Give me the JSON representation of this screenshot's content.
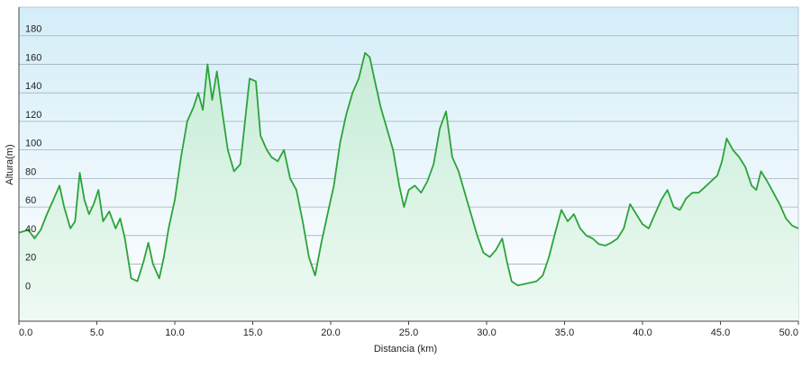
{
  "chart_data": {
    "type": "area",
    "xlabel": "Distancia  (km)",
    "ylabel": "Altura(m)",
    "xlim": [
      0,
      50
    ],
    "ylim": [
      -20,
      200
    ],
    "x_ticks": [
      "0.0",
      "5.0",
      "10.0",
      "15.0",
      "20.0",
      "25.0",
      "30.0",
      "35.0",
      "40.0",
      "45.0",
      "50.0"
    ],
    "y_ticks": [
      "0",
      "20",
      "40",
      "60",
      "80",
      "100",
      "120",
      "140",
      "160",
      "180"
    ],
    "grid": true,
    "colors": {
      "line": "#2ca33a",
      "fill_top": "#c6ecd7",
      "fill_bottom": "#eefaf2",
      "bg_top": "#d4edf8",
      "bg_bottom": "#ffffff",
      "grid": "#9fb1bd",
      "axis": "#444444"
    },
    "series": [
      {
        "x": [
          0.0,
          0.6,
          1.0,
          1.4,
          1.8,
          2.2,
          2.6,
          2.9,
          3.3,
          3.6,
          3.9,
          4.2,
          4.5,
          4.8,
          5.1,
          5.4,
          5.8,
          6.2,
          6.5,
          6.8,
          7.2,
          7.6,
          8.0,
          8.3,
          8.6,
          9.0,
          9.3,
          9.6,
          10.0,
          10.4,
          10.8,
          11.2,
          11.5,
          11.8,
          12.1,
          12.4,
          12.7,
          13.0,
          13.4,
          13.8,
          14.2,
          14.5,
          14.8,
          15.2,
          15.5,
          15.9,
          16.2,
          16.6,
          17.0,
          17.4,
          17.8,
          18.2,
          18.6,
          19.0,
          19.4,
          19.8,
          20.2,
          20.6,
          21.0,
          21.4,
          21.8,
          22.2,
          22.5,
          22.8,
          23.2,
          23.6,
          24.0,
          24.4,
          24.7,
          25.0,
          25.4,
          25.8,
          26.2,
          26.6,
          27.0,
          27.4,
          27.8,
          28.2,
          28.6,
          29.0,
          29.4,
          29.8,
          30.2,
          30.6,
          31.0,
          31.3,
          31.6,
          32.0,
          32.4,
          32.8,
          33.2,
          33.6,
          34.0,
          34.4,
          34.8,
          35.2,
          35.6,
          36.0,
          36.4,
          36.8,
          37.2,
          37.6,
          38.0,
          38.4,
          38.8,
          39.2,
          39.6,
          40.0,
          40.4,
          40.8,
          41.2,
          41.6,
          42.0,
          42.4,
          42.8,
          43.2,
          43.6,
          44.0,
          44.4,
          44.8,
          45.1,
          45.4,
          45.8,
          46.2,
          46.6,
          47.0,
          47.3,
          47.6,
          48.0,
          48.4,
          48.8,
          49.2,
          49.6,
          50.0
        ],
        "values": [
          42,
          44,
          38,
          44,
          55,
          65,
          75,
          60,
          45,
          50,
          84,
          65,
          55,
          62,
          72,
          50,
          57,
          45,
          52,
          38,
          10,
          8,
          22,
          35,
          20,
          10,
          25,
          45,
          65,
          95,
          120,
          130,
          140,
          128,
          160,
          135,
          155,
          130,
          100,
          85,
          90,
          120,
          150,
          148,
          110,
          100,
          95,
          92,
          100,
          80,
          72,
          50,
          25,
          12,
          35,
          55,
          75,
          105,
          125,
          140,
          150,
          168,
          165,
          150,
          130,
          115,
          100,
          75,
          60,
          72,
          75,
          70,
          78,
          90,
          115,
          127,
          95,
          85,
          70,
          55,
          40,
          28,
          25,
          30,
          38,
          22,
          8,
          5,
          6,
          7,
          8,
          12,
          25,
          42,
          58,
          50,
          55,
          45,
          40,
          38,
          34,
          33,
          35,
          38,
          45,
          62,
          55,
          48,
          45,
          55,
          65,
          72,
          60,
          58,
          66,
          70,
          70,
          74,
          78,
          82,
          92,
          108,
          100,
          95,
          88,
          75,
          72,
          85,
          78,
          70,
          62,
          52,
          47,
          45
        ]
      }
    ]
  }
}
